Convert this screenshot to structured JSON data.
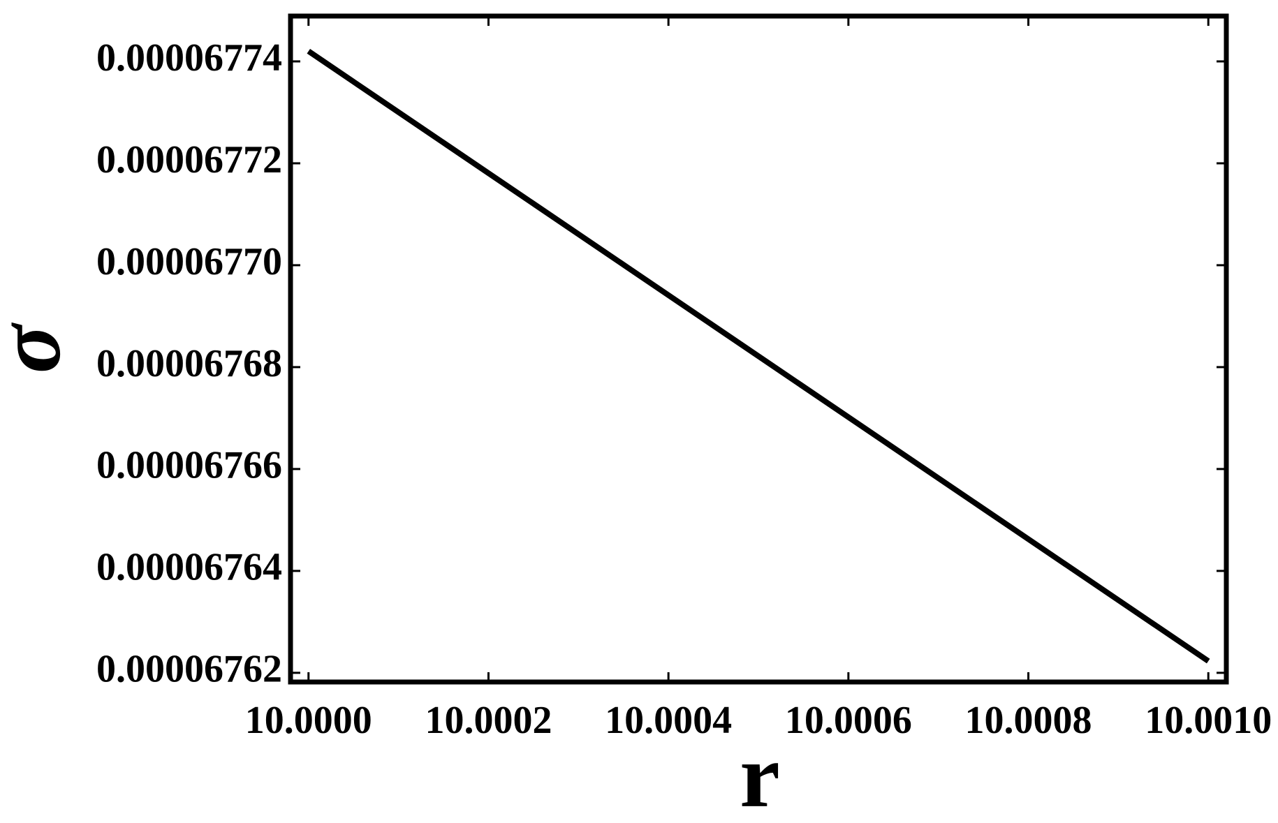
{
  "chart_data": {
    "type": "line",
    "x_label": "r",
    "y_label": "σ",
    "x": [
      10.0,
      10.001
    ],
    "series": [
      {
        "color": "#000000",
        "values": [
          6.7742e-05,
          6.76223e-05
        ]
      }
    ],
    "xlim": [
      9.99998,
      10.00102
    ],
    "ylim": [
      6.76182e-05,
      6.77489e-05
    ],
    "xticks": [
      {
        "value": 10.0,
        "label": "10.0000"
      },
      {
        "value": 10.0002,
        "label": "10.0002"
      },
      {
        "value": 10.0004,
        "label": "10.0004"
      },
      {
        "value": 10.0006,
        "label": "10.0006"
      },
      {
        "value": 10.0008,
        "label": "10.0008"
      },
      {
        "value": 10.001,
        "label": "10.0010"
      }
    ],
    "yticks": [
      {
        "value": 6.762e-05,
        "label": "0.00006762"
      },
      {
        "value": 6.764e-05,
        "label": "0.00006764"
      },
      {
        "value": 6.766e-05,
        "label": "0.00006766"
      },
      {
        "value": 6.768e-05,
        "label": "0.00006768"
      },
      {
        "value": 6.77e-05,
        "label": "0.00006770"
      },
      {
        "value": 6.772e-05,
        "label": "0.00006772"
      },
      {
        "value": 6.774e-05,
        "label": "0.00006774"
      }
    ]
  }
}
